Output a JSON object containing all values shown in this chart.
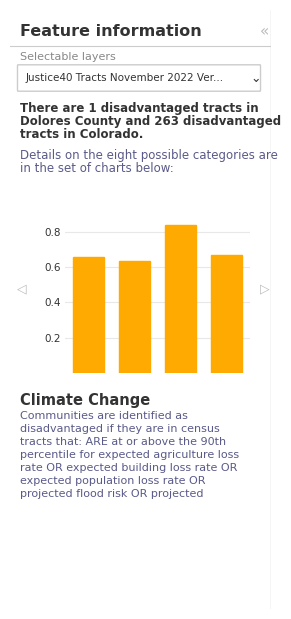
{
  "title": "Feature information",
  "close_symbol": "«",
  "selectable_layers_label": "Selectable layers",
  "dropdown_text": "Justice40 Tracts November 2022 Ver...",
  "bold_lines": [
    "There are 1 disadvantaged tracts in",
    "Dolores County and 263 disadvantaged",
    "tracts in Colorado."
  ],
  "detail_lines": [
    "Details on the eight possible categories are",
    "in the set of charts below:"
  ],
  "bar_values": [
    0.655,
    0.635,
    0.835,
    0.665
  ],
  "bar_color": "#FFAA00",
  "yticks": [
    0.2,
    0.4,
    0.6,
    0.8
  ],
  "ylim": [
    0,
    0.95
  ],
  "nav_left": "◁",
  "nav_right": "▷",
  "section_title": "Climate Change",
  "section_lines": [
    "Communities are identified as",
    "disadvantaged if they are in census",
    "tracts that: ARE at or above the 90th",
    "percentile for expected agriculture loss",
    "rate OR expected building loss rate OR",
    "expected population loss rate OR",
    "projected flood risk OR projected"
  ],
  "bg_color": "#ffffff",
  "border_color": "#cccccc",
  "text_color": "#333333",
  "nav_color": "#bbbbbb",
  "grid_color": "#e8e8e8",
  "blue_text_color": "#5a5a8a",
  "title_fontsize": 11.5,
  "label_fontsize": 8,
  "bold_fontsize": 8.5,
  "detail_fontsize": 8.5,
  "section_title_fontsize": 10.5,
  "section_text_fontsize": 8
}
